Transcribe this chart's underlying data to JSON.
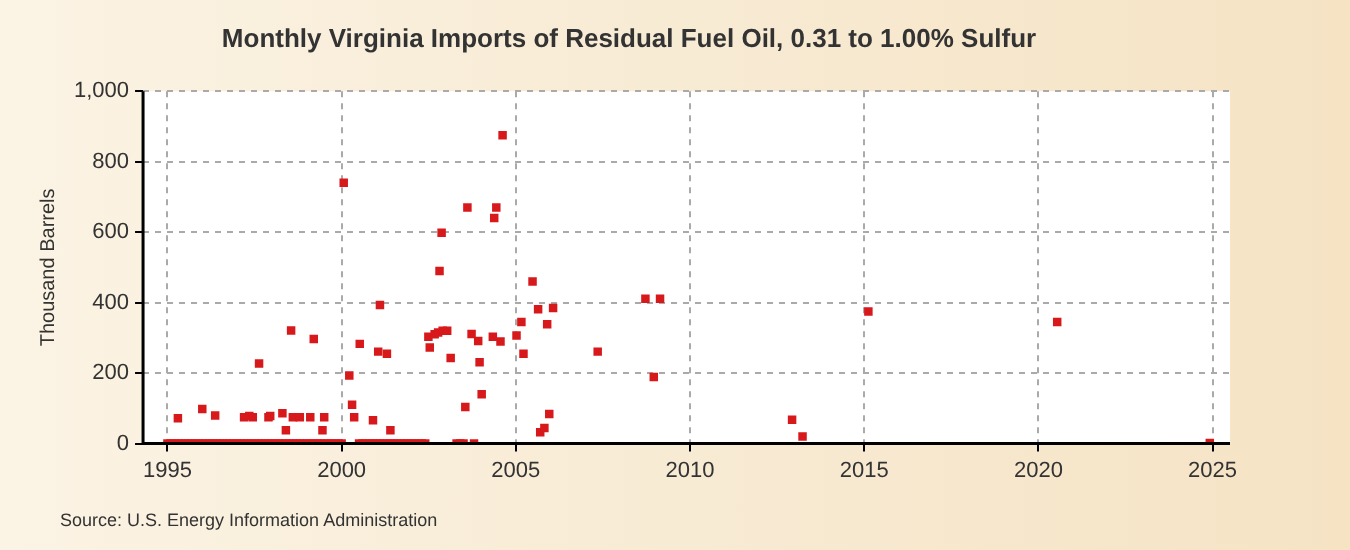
{
  "chart_data": {
    "type": "scatter",
    "title": "Monthly Virginia Imports of Residual Fuel Oil, 0.31 to 1.00% Sulfur",
    "ylabel": "Thousand Barrels",
    "annotations": [
      "Source: U.S. Energy Information Administration"
    ],
    "x": [
      1995.0,
      1995.1,
      1995.2,
      1995.3,
      1995.4,
      1995.5,
      1995.6,
      1995.7,
      1995.8,
      1995.9,
      1996.0,
      1996.1,
      1996.2,
      1996.3,
      1996.4,
      1996.5,
      1996.6,
      1996.7,
      1996.8,
      1996.9,
      1997.0,
      1997.1,
      1997.2,
      1997.3,
      1997.4,
      1997.5,
      1997.6,
      1997.7,
      1997.8,
      1997.9,
      1998.0,
      1998.1,
      1998.2,
      1998.3,
      1998.4,
      1998.5,
      1998.6,
      1998.7,
      1998.8,
      1998.9,
      1999.0,
      1999.1,
      1999.2,
      1999.3,
      1999.4,
      1999.5,
      1999.6,
      1999.7,
      1999.8,
      1999.9,
      2000.0,
      2000.5,
      2000.6,
      2000.7,
      2000.8,
      2000.9,
      2001.0,
      2001.1,
      2001.2,
      2001.3,
      2001.4,
      2001.5,
      2001.6,
      2001.7,
      2001.8,
      2001.9,
      2002.0,
      2002.1,
      2002.2,
      2002.3,
      2002.4,
      2003.3,
      2003.4,
      2003.5,
      2003.8,
      1995.3,
      1996.0,
      1996.37,
      1997.2,
      1997.35,
      1997.45,
      1997.63,
      1997.9,
      1997.95,
      1998.3,
      1998.4,
      1998.55,
      1998.6,
      1998.8,
      1999.1,
      1999.2,
      1999.45,
      1999.5,
      2000.06,
      2000.22,
      2000.3,
      2000.36,
      2000.52,
      2000.9,
      2001.05,
      2001.1,
      2001.3,
      2001.4,
      2002.49,
      2002.53,
      2002.67,
      2002.77,
      2002.81,
      2002.87,
      2002.9,
      2003.03,
      2003.13,
      2003.55,
      2003.61,
      2003.73,
      2003.92,
      2003.96,
      2004.02,
      2004.34,
      2004.38,
      2004.44,
      2004.56,
      2004.62,
      2005.02,
      2005.16,
      2005.22,
      2005.48,
      2005.64,
      2005.7,
      2005.82,
      2005.9,
      2005.96,
      2006.07,
      2007.35,
      2008.72,
      2008.96,
      2009.14,
      2012.93,
      2013.23,
      2015.12,
      2020.54,
      2024.92
    ],
    "values": [
      0,
      0,
      0,
      0,
      0,
      0,
      0,
      0,
      0,
      0,
      0,
      0,
      0,
      0,
      0,
      0,
      0,
      0,
      0,
      0,
      0,
      0,
      0,
      0,
      0,
      0,
      0,
      0,
      0,
      0,
      0,
      0,
      0,
      0,
      0,
      0,
      0,
      0,
      0,
      0,
      0,
      0,
      0,
      0,
      0,
      0,
      0,
      0,
      0,
      0,
      0,
      0,
      0,
      0,
      0,
      0,
      0,
      0,
      0,
      0,
      0,
      0,
      0,
      0,
      0,
      0,
      0,
      0,
      0,
      0,
      0,
      0,
      0,
      0,
      0,
      72,
      98,
      80,
      75,
      78,
      75,
      227,
      75,
      78,
      86,
      38,
      321,
      75,
      75,
      75,
      297,
      38,
      75,
      740,
      193,
      110,
      75,
      283,
      66,
      261,
      393,
      255,
      38,
      303,
      273,
      310,
      315,
      490,
      598,
      320,
      320,
      243,
      104,
      670,
      311,
      291,
      231,
      140,
      303,
      640,
      670,
      290,
      875,
      307,
      345,
      255,
      460,
      381,
      32,
      44,
      339,
      84,
      385,
      261,
      411,
      189,
      411,
      68,
      20,
      375,
      345,
      2
    ],
    "color": "#d7191c",
    "marker": "square",
    "xlim": [
      1994.3,
      2025.5
    ],
    "xticks": [
      1995,
      2000,
      2005,
      2010,
      2015,
      2020,
      2025
    ],
    "ylim": [
      0,
      1000
    ],
    "yticks": [
      0,
      200,
      400,
      600,
      800,
      {
        "value": 1000,
        "label": "1,000"
      }
    ],
    "grid": true,
    "legend": false
  }
}
